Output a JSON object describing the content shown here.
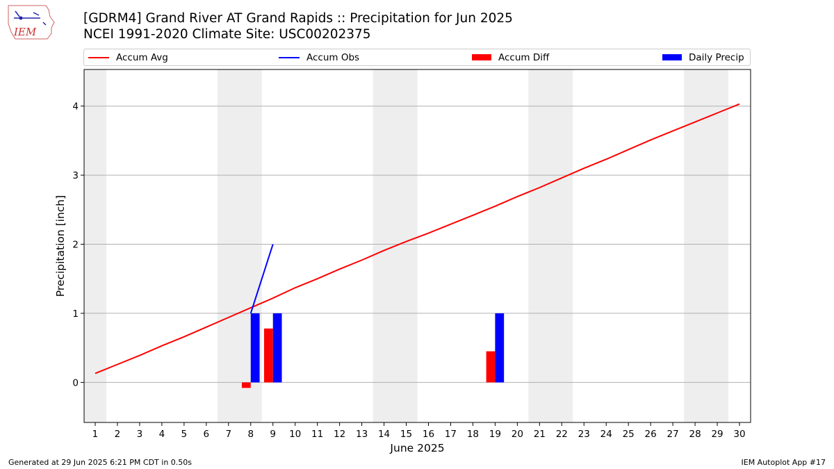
{
  "header": {
    "title_line1": "[GDRM4] Grand River  AT Grand Rapids :: Precipitation for Jun 2025",
    "title_line2": "NCEI 1991-2020 Climate Site: USC00202375",
    "logo_text": "IEM"
  },
  "footer": {
    "left": "Generated at 29 Jun 2025 6:21 PM CDT in 0.50s",
    "right": "IEM Autoplot App #17"
  },
  "legend": [
    {
      "label": "Accum Avg",
      "kind": "line",
      "color": "#ff0000"
    },
    {
      "label": "Accum Obs",
      "kind": "line",
      "color": "#0000ff"
    },
    {
      "label": "Accum Diff",
      "kind": "box",
      "color": "#ff0000"
    },
    {
      "label": "Daily Precip",
      "kind": "box",
      "color": "#0000ff"
    }
  ],
  "chart_data": {
    "type": "bar",
    "xlabel": "June 2025",
    "ylabel": "Precipitation [inch]",
    "xlim": [
      0.5,
      30.5
    ],
    "ylim": [
      -0.58,
      4.53
    ],
    "xticks": [
      1,
      2,
      3,
      4,
      5,
      6,
      7,
      8,
      9,
      10,
      11,
      12,
      13,
      14,
      15,
      16,
      17,
      18,
      19,
      20,
      21,
      22,
      23,
      24,
      25,
      26,
      27,
      28,
      29,
      30
    ],
    "yticks": [
      0,
      1,
      2,
      3,
      4
    ],
    "grid": "horizontal",
    "legend_position": "top",
    "weekend_shading": [
      [
        0.5,
        1.5
      ],
      [
        6.5,
        8.5
      ],
      [
        13.5,
        15.5
      ],
      [
        20.5,
        22.5
      ],
      [
        27.5,
        29.5
      ]
    ],
    "series": [
      {
        "name": "Accum Avg",
        "type": "line",
        "color": "#ff0000",
        "x": [
          1,
          2,
          3,
          4,
          5,
          6,
          7,
          8,
          9,
          10,
          11,
          12,
          13,
          14,
          15,
          16,
          17,
          18,
          19,
          20,
          21,
          22,
          23,
          24,
          25,
          26,
          27,
          28,
          29,
          30
        ],
        "values": [
          0.13,
          0.26,
          0.39,
          0.53,
          0.66,
          0.8,
          0.94,
          1.08,
          1.22,
          1.37,
          1.5,
          1.64,
          1.77,
          1.91,
          2.04,
          2.16,
          2.29,
          2.42,
          2.55,
          2.69,
          2.82,
          2.96,
          3.1,
          3.23,
          3.37,
          3.51,
          3.64,
          3.77,
          3.9,
          4.03
        ]
      },
      {
        "name": "Accum Obs",
        "type": "line",
        "color": "#0000ff",
        "x": [
          8,
          9
        ],
        "values": [
          1.0,
          2.0
        ]
      },
      {
        "name": "Accum Diff",
        "type": "bar",
        "color": "#ff0000",
        "x": [
          8,
          9,
          19
        ],
        "values": [
          -0.08,
          0.78,
          0.45
        ]
      },
      {
        "name": "Daily Precip",
        "type": "bar",
        "color": "#0000ff",
        "x": [
          8,
          9,
          19
        ],
        "values": [
          1.0,
          1.0,
          1.0
        ]
      }
    ]
  }
}
